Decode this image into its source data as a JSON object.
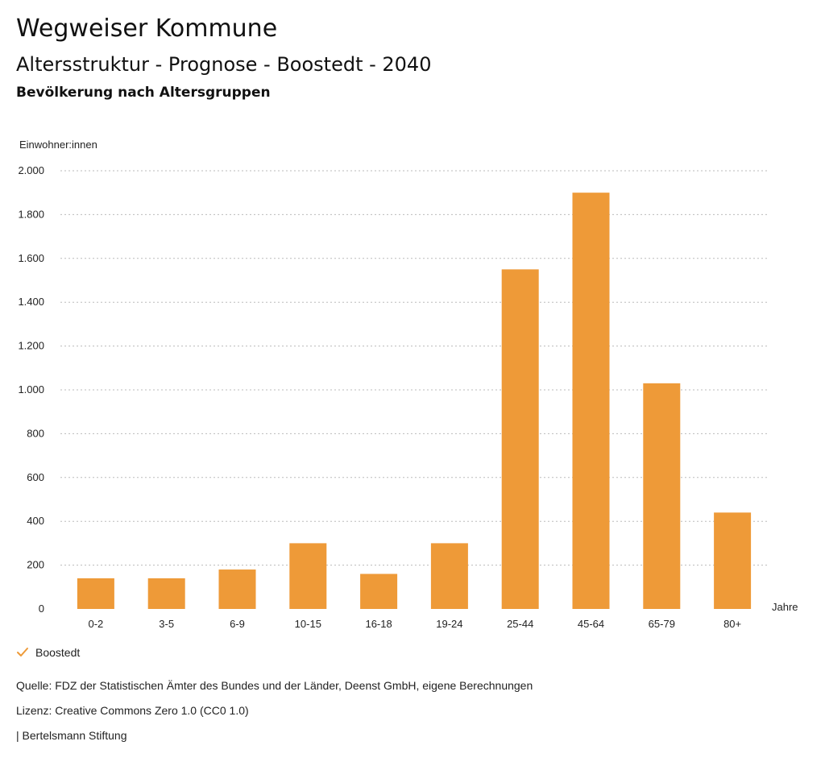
{
  "header": {
    "brand": "Wegweiser Kommune",
    "title": "Altersstruktur - Prognose - Boostedt - 2040",
    "subtitle": "Bevölkerung nach Altersgruppen"
  },
  "chart_data": {
    "type": "bar",
    "title": "Altersstruktur - Prognose - Boostedt - 2040",
    "subtitle": "Bevölkerung nach Altersgruppen",
    "ylabel": "Einwohner:innen",
    "xlabel": "Jahre",
    "ylim": [
      0,
      2000
    ],
    "yticks": [
      0,
      200,
      400,
      600,
      800,
      1000,
      1200,
      1400,
      1600,
      1800,
      2000
    ],
    "ytick_labels": [
      "0",
      "200",
      "400",
      "600",
      "800",
      "1.000",
      "1.200",
      "1.400",
      "1.600",
      "1.800",
      "2.000"
    ],
    "categories": [
      "0-2",
      "3-5",
      "6-9",
      "10-15",
      "16-18",
      "19-24",
      "25-44",
      "45-64",
      "65-79",
      "80+"
    ],
    "series": [
      {
        "name": "Boostedt",
        "color": "#ee9a38",
        "values": [
          140,
          140,
          180,
          300,
          160,
          300,
          1550,
          1900,
          1030,
          440
        ]
      }
    ],
    "grid": true,
    "grid_style": "dotted",
    "legend_position": "bottom-left"
  },
  "legend": {
    "items": [
      {
        "label": "Boostedt",
        "icon": "check-icon",
        "color": "#ee9a38"
      }
    ]
  },
  "footer": {
    "source": "Quelle: FDZ der Statistischen Ämter des Bundes und der Länder, Deenst GmbH, eigene Berechnungen",
    "license": "Lizenz: Creative Commons Zero 1.0 (CC0 1.0)",
    "publisher": "| Bertelsmann Stiftung"
  }
}
